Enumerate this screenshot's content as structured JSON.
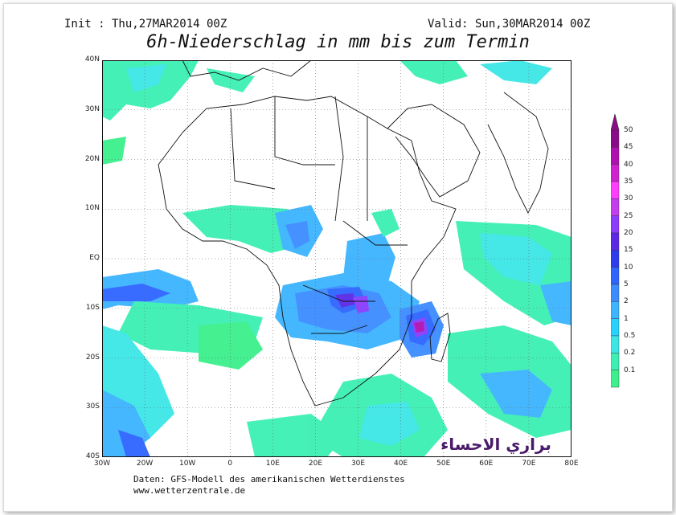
{
  "header": {
    "init": "Init : Thu,27MAR2014 00Z",
    "valid": "Valid: Sun,30MAR2014 00Z",
    "title": "6h-Niederschlag in mm bis zum Termin"
  },
  "map": {
    "lat_labels": [
      "40N",
      "30N",
      "20N",
      "10N",
      "EQ",
      "10S",
      "20S",
      "30S",
      "40S"
    ],
    "lon_labels": [
      "30W",
      "20W",
      "10W",
      "0",
      "10E",
      "20E",
      "30E",
      "40E",
      "50E",
      "60E",
      "70E",
      "80E"
    ]
  },
  "legend": {
    "levels": [
      "50",
      "45",
      "40",
      "35",
      "30",
      "25",
      "20",
      "15",
      "10",
      "5",
      "2",
      "1",
      "0.5",
      "0.2",
      "0.1"
    ],
    "colors": [
      "#8a0a8a",
      "#b010b0",
      "#d020d0",
      "#ff3cff",
      "#c43cf0",
      "#8a3cff",
      "#5a28e6",
      "#2e3cf0",
      "#2e64ff",
      "#3c8cff",
      "#3cb4ff",
      "#28d2ff",
      "#3ce6e6",
      "#3cf0b4",
      "#3cf08c"
    ]
  },
  "footer": {
    "line1": "Daten: GFS-Modell des amerikanischen Wetterdienstes",
    "line2": "www.wetterzentrale.de"
  },
  "watermark": "براري الاحساء"
}
